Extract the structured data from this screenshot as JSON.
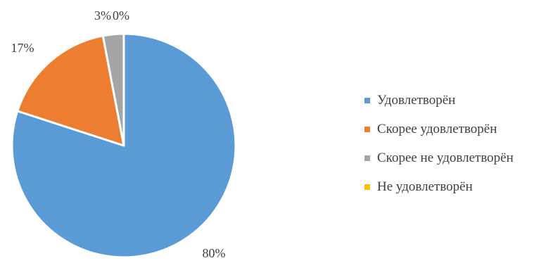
{
  "chart_data": {
    "type": "pie",
    "title": "",
    "categories": [
      "Удовлетворён",
      "Скорее удовлетворён",
      "Скорее не удовлетворён",
      "Не удовлетворён"
    ],
    "values": [
      80,
      17,
      3,
      0
    ],
    "labels": [
      "80%",
      "17%",
      "3%",
      "0%"
    ],
    "colors": [
      "#5B9BD5",
      "#ED7D31",
      "#A5A5A5",
      "#FFC000"
    ],
    "start_angle_deg": 0,
    "direction": "clockwise",
    "legend_position": "right"
  }
}
